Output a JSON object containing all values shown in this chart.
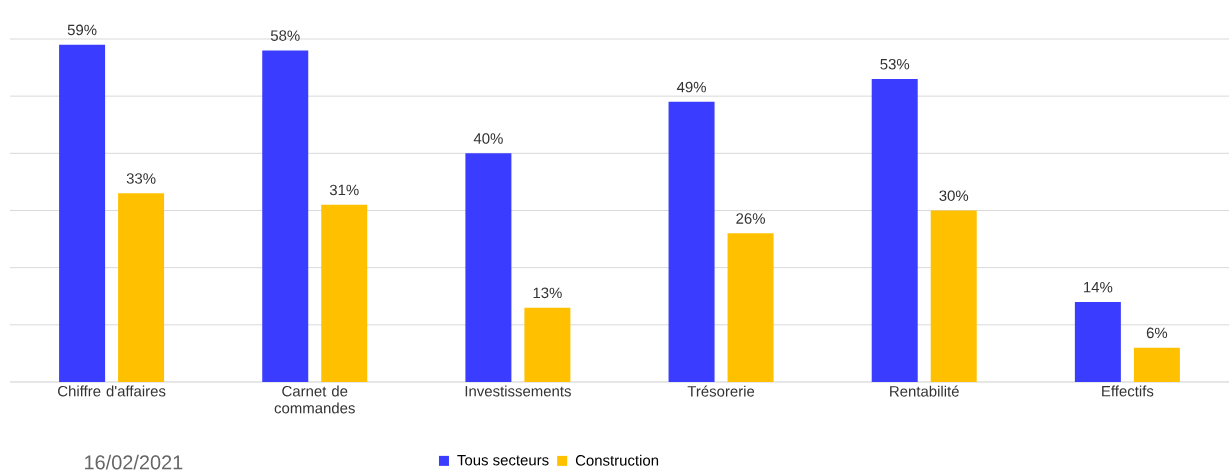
{
  "chart_data": {
    "type": "bar",
    "categories": [
      "Chiffre d'affaires",
      "Carnet de commandes",
      "Investissements",
      "Trésorerie",
      "Rentabilité",
      "Effectifs"
    ],
    "series": [
      {
        "name": "Tous secteurs",
        "color": "#3a3cff",
        "values": [
          59,
          58,
          40,
          49,
          53,
          14
        ],
        "value_labels": [
          "59%",
          "58%",
          "40%",
          "49%",
          "53%",
          "14%"
        ]
      },
      {
        "name": "Construction",
        "color": "#ffc000",
        "values": [
          33,
          31,
          13,
          26,
          30,
          6
        ],
        "value_labels": [
          "33%",
          "31%",
          "13%",
          "26%",
          "30%",
          "6%"
        ]
      }
    ],
    "ylim": [
      0,
      60
    ],
    "yticks": [
      0,
      10,
      20,
      30,
      40,
      50,
      60
    ],
    "grid": "y",
    "tick_labels": "x",
    "legend": "bottom",
    "annotations": [
      "16/02/2021"
    ]
  }
}
